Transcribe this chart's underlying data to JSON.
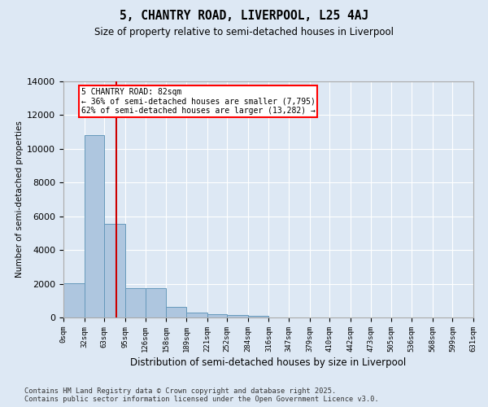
{
  "title": "5, CHANTRY ROAD, LIVERPOOL, L25 4AJ",
  "subtitle": "Size of property relative to semi-detached houses in Liverpool",
  "xlabel": "Distribution of semi-detached houses by size in Liverpool",
  "ylabel": "Number of semi-detached properties",
  "annotation_text": "5 CHANTRY ROAD: 82sqm\n← 36% of semi-detached houses are smaller (7,795)\n62% of semi-detached houses are larger (13,282) →",
  "bin_edges": [
    0,
    32,
    63,
    95,
    126,
    158,
    189,
    221,
    252,
    284,
    316,
    347,
    379,
    410,
    442,
    473,
    505,
    536,
    568,
    599,
    631
  ],
  "bin_labels": [
    "0sqm",
    "32sqm",
    "63sqm",
    "95sqm",
    "126sqm",
    "158sqm",
    "189sqm",
    "221sqm",
    "252sqm",
    "284sqm",
    "316sqm",
    "347sqm",
    "379sqm",
    "410sqm",
    "442sqm",
    "473sqm",
    "505sqm",
    "536sqm",
    "568sqm",
    "599sqm",
    "631sqm"
  ],
  "bar_values": [
    2050,
    10800,
    5550,
    1750,
    1750,
    620,
    310,
    200,
    160,
    120,
    0,
    0,
    0,
    0,
    0,
    0,
    0,
    0,
    0,
    0
  ],
  "bar_color": "#aec6df",
  "bar_edge_color": "#6699bb",
  "vline_color": "#cc0000",
  "vline_x": 82,
  "ylim": [
    0,
    14000
  ],
  "yticks": [
    0,
    2000,
    4000,
    6000,
    8000,
    10000,
    12000,
    14000
  ],
  "bg_color": "#dde8f4",
  "grid_color": "#ffffff",
  "footer_line1": "Contains HM Land Registry data © Crown copyright and database right 2025.",
  "footer_line2": "Contains public sector information licensed under the Open Government Licence v3.0."
}
